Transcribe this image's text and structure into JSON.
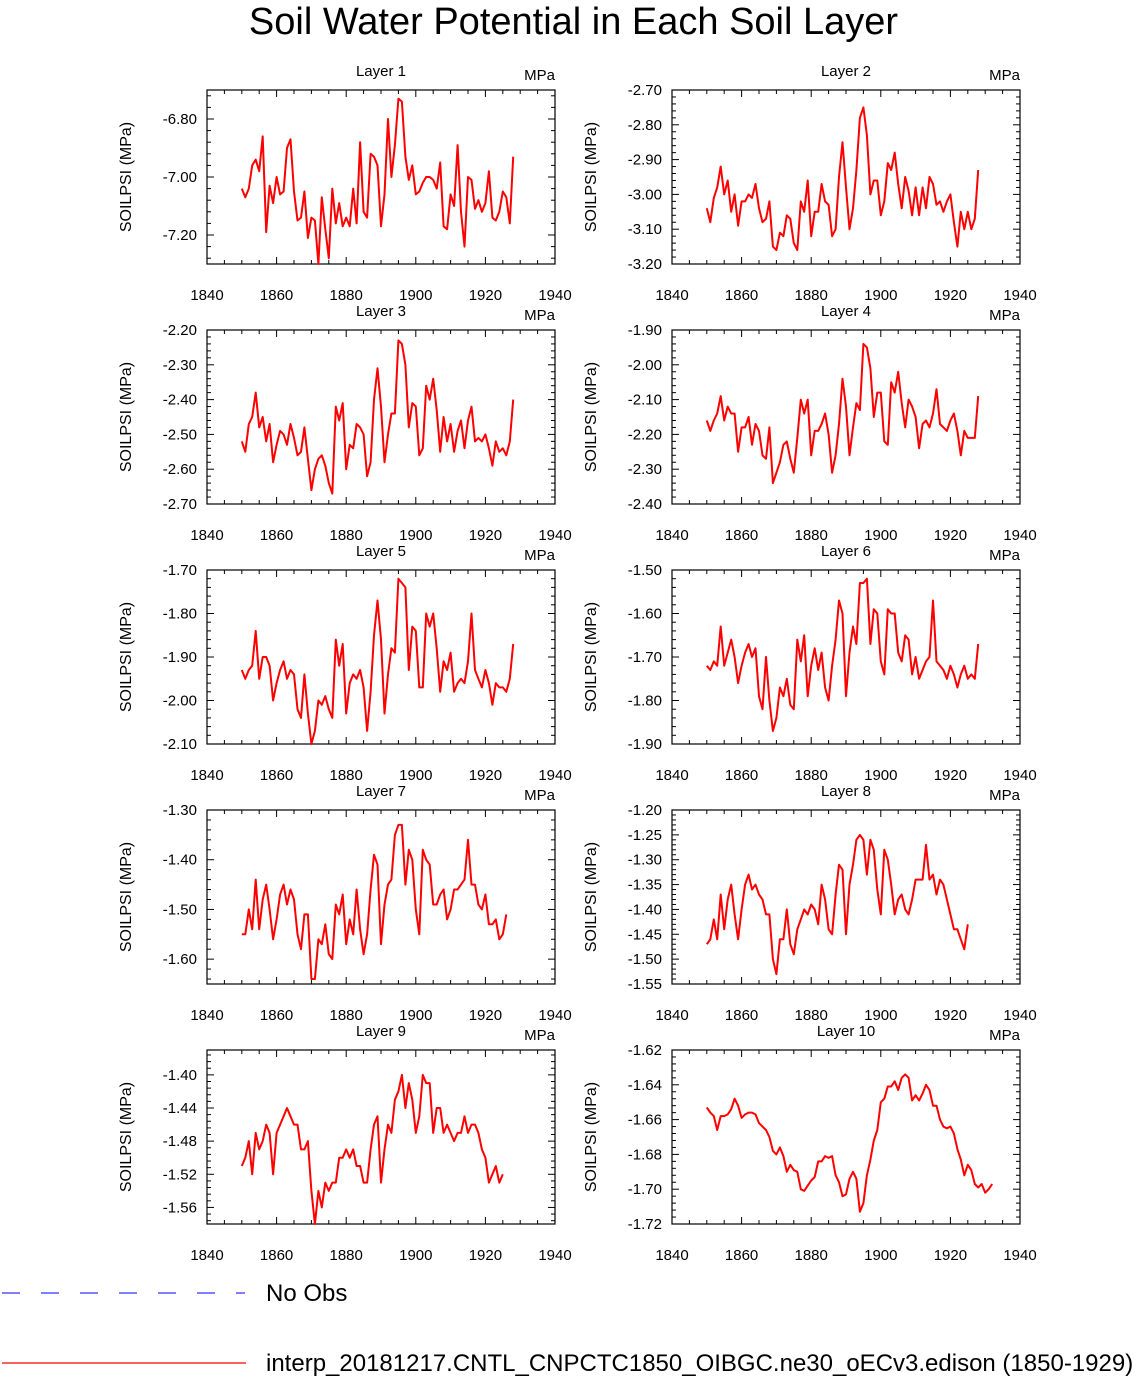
{
  "title": "Soil Water Potential in Each Soil Layer",
  "legend": [
    {
      "label": "No Obs",
      "color": "#3333ff",
      "style": "dashed"
    },
    {
      "label": "interp_20181217.CNTL_CNPCTC1850_OIBGC.ne30_oECv3.edison (1850-1929)",
      "color": "#ff0000",
      "style": "solid"
    }
  ],
  "chart_data": [
    {
      "type": "line",
      "title": "Layer 1",
      "units": "MPa",
      "ylabel": "SOILPSI  (MPa)",
      "xlim": [
        1840,
        1940
      ],
      "xticks": [
        1840,
        1860,
        1880,
        1900,
        1920,
        1940
      ],
      "ylim": [
        -7.3,
        -6.7
      ],
      "yticks": [
        -7.2,
        -7.0,
        -6.8
      ],
      "ytick_labels": [
        "-7.20",
        "-7.00",
        "-6.80"
      ],
      "x_start": 1850,
      "values": [
        -7.04,
        -7.07,
        -7.04,
        -6.96,
        -6.94,
        -6.98,
        -6.86,
        -7.19,
        -7.03,
        -7.09,
        -7.0,
        -7.06,
        -7.05,
        -6.9,
        -6.87,
        -7.05,
        -7.15,
        -7.14,
        -7.05,
        -7.21,
        -7.14,
        -7.15,
        -7.3,
        -7.07,
        -7.18,
        -7.28,
        -7.04,
        -7.16,
        -7.09,
        -7.17,
        -7.14,
        -7.17,
        -7.04,
        -7.16,
        -6.88,
        -7.12,
        -7.14,
        -6.92,
        -6.93,
        -6.96,
        -7.17,
        -7.06,
        -6.8,
        -7.0,
        -6.89,
        -6.73,
        -6.74,
        -6.93,
        -7.01,
        -6.96,
        -7.06,
        -7.05,
        -7.02,
        -7.0,
        -7.0,
        -7.01,
        -7.04,
        -6.95,
        -7.17,
        -7.18,
        -7.06,
        -7.1,
        -6.89,
        -7.12,
        -7.24,
        -7.0,
        -7.01,
        -7.11,
        -7.08,
        -7.12,
        -7.09,
        -6.98,
        -7.14,
        -7.15,
        -7.12,
        -7.05,
        -7.07,
        -7.16,
        -6.93
      ]
    },
    {
      "type": "line",
      "title": "Layer 2",
      "units": "MPa",
      "ylabel": "SOILPSI  (MPa)",
      "xlim": [
        1840,
        1940
      ],
      "xticks": [
        1840,
        1860,
        1880,
        1900,
        1920,
        1940
      ],
      "ylim": [
        -3.2,
        -2.7
      ],
      "yticks": [
        -3.2,
        -3.1,
        -3.0,
        -2.9,
        -2.8,
        -2.7
      ],
      "ytick_labels": [
        "-3.20",
        "-3.10",
        "-3.00",
        "-2.90",
        "-2.80",
        "-2.70"
      ],
      "x_start": 1850,
      "values": [
        -3.04,
        -3.08,
        -3.01,
        -2.98,
        -2.92,
        -3.0,
        -2.96,
        -3.05,
        -3.0,
        -3.09,
        -3.02,
        -3.02,
        -3.0,
        -3.01,
        -2.97,
        -3.04,
        -3.08,
        -3.07,
        -3.02,
        -3.15,
        -3.16,
        -3.11,
        -3.12,
        -3.06,
        -3.07,
        -3.14,
        -3.16,
        -3.02,
        -3.05,
        -2.96,
        -3.12,
        -3.05,
        -3.05,
        -2.97,
        -3.02,
        -3.03,
        -3.12,
        -3.1,
        -2.95,
        -2.85,
        -2.98,
        -3.1,
        -3.04,
        -2.93,
        -2.78,
        -2.75,
        -2.83,
        -3.0,
        -2.96,
        -2.96,
        -3.06,
        -3.02,
        -2.91,
        -2.93,
        -2.88,
        -2.97,
        -3.04,
        -2.95,
        -2.99,
        -3.06,
        -2.98,
        -3.06,
        -2.98,
        -3.04,
        -2.95,
        -2.97,
        -3.03,
        -3.02,
        -3.05,
        -3.02,
        -3.0,
        -3.08,
        -3.15,
        -3.05,
        -3.1,
        -3.05,
        -3.1,
        -3.07,
        -2.93
      ]
    },
    {
      "type": "line",
      "title": "Layer 3",
      "units": "MPa",
      "ylabel": "SOILPSI  (MPa)",
      "xlim": [
        1840,
        1940
      ],
      "xticks": [
        1840,
        1860,
        1880,
        1900,
        1920,
        1940
      ],
      "ylim": [
        -2.7,
        -2.2
      ],
      "yticks": [
        -2.7,
        -2.6,
        -2.5,
        -2.4,
        -2.3,
        -2.2
      ],
      "ytick_labels": [
        "-2.70",
        "-2.60",
        "-2.50",
        "-2.40",
        "-2.30",
        "-2.20"
      ],
      "x_start": 1850,
      "values": [
        -2.52,
        -2.55,
        -2.47,
        -2.45,
        -2.38,
        -2.48,
        -2.45,
        -2.52,
        -2.47,
        -2.58,
        -2.53,
        -2.49,
        -2.5,
        -2.53,
        -2.47,
        -2.51,
        -2.56,
        -2.55,
        -2.48,
        -2.57,
        -2.66,
        -2.6,
        -2.57,
        -2.56,
        -2.59,
        -2.64,
        -2.67,
        -2.42,
        -2.46,
        -2.41,
        -2.6,
        -2.53,
        -2.54,
        -2.47,
        -2.48,
        -2.5,
        -2.62,
        -2.58,
        -2.4,
        -2.31,
        -2.42,
        -2.58,
        -2.5,
        -2.44,
        -2.44,
        -2.23,
        -2.24,
        -2.3,
        -2.48,
        -2.41,
        -2.42,
        -2.56,
        -2.54,
        -2.36,
        -2.4,
        -2.34,
        -2.43,
        -2.55,
        -2.45,
        -2.52,
        -2.47,
        -2.55,
        -2.49,
        -2.46,
        -2.54,
        -2.46,
        -2.42,
        -2.52,
        -2.51,
        -2.52,
        -2.5,
        -2.54,
        -2.59,
        -2.52,
        -2.55,
        -2.54,
        -2.56,
        -2.52,
        -2.4
      ]
    },
    {
      "type": "line",
      "title": "Layer 4",
      "units": "MPa",
      "ylabel": "SOILPSI  (MPa)",
      "xlim": [
        1840,
        1940
      ],
      "xticks": [
        1840,
        1860,
        1880,
        1900,
        1920,
        1940
      ],
      "ylim": [
        -2.4,
        -1.9
      ],
      "yticks": [
        -2.4,
        -2.3,
        -2.2,
        -2.1,
        -2.0,
        -1.9
      ],
      "ytick_labels": [
        "-2.40",
        "-2.30",
        "-2.20",
        "-2.10",
        "-2.00",
        "-1.90"
      ],
      "x_start": 1850,
      "values": [
        -2.16,
        -2.19,
        -2.16,
        -2.14,
        -2.09,
        -2.16,
        -2.12,
        -2.14,
        -2.14,
        -2.25,
        -2.18,
        -2.18,
        -2.15,
        -2.23,
        -2.17,
        -2.19,
        -2.26,
        -2.27,
        -2.18,
        -2.34,
        -2.31,
        -2.28,
        -2.23,
        -2.22,
        -2.27,
        -2.31,
        -2.21,
        -2.1,
        -2.14,
        -2.1,
        -2.26,
        -2.19,
        -2.19,
        -2.17,
        -2.14,
        -2.2,
        -2.31,
        -2.26,
        -2.17,
        -2.04,
        -2.12,
        -2.26,
        -2.18,
        -2.11,
        -2.13,
        -1.94,
        -1.95,
        -2.01,
        -2.15,
        -2.08,
        -2.08,
        -2.22,
        -2.23,
        -2.05,
        -2.08,
        -2.02,
        -2.11,
        -2.18,
        -2.1,
        -2.12,
        -2.15,
        -2.24,
        -2.17,
        -2.16,
        -2.18,
        -2.14,
        -2.07,
        -2.17,
        -2.18,
        -2.19,
        -2.16,
        -2.14,
        -2.19,
        -2.26,
        -2.19,
        -2.21,
        -2.21,
        -2.21,
        -2.09
      ]
    },
    {
      "type": "line",
      "title": "Layer 5",
      "units": "MPa",
      "ylabel": "SOILPSI  (MPa)",
      "xlim": [
        1840,
        1940
      ],
      "xticks": [
        1840,
        1860,
        1880,
        1900,
        1920,
        1940
      ],
      "ylim": [
        -2.1,
        -1.7
      ],
      "yticks": [
        -2.1,
        -2.0,
        -1.9,
        -1.8,
        -1.7
      ],
      "ytick_labels": [
        "-2.10",
        "-2.00",
        "-1.90",
        "-1.80",
        "-1.70"
      ],
      "x_start": 1850,
      "values": [
        -1.93,
        -1.95,
        -1.93,
        -1.92,
        -1.84,
        -1.95,
        -1.9,
        -1.9,
        -1.92,
        -2.0,
        -1.96,
        -1.93,
        -1.91,
        -1.95,
        -1.93,
        -1.94,
        -2.02,
        -2.04,
        -1.94,
        -2.03,
        -2.1,
        -2.07,
        -2.0,
        -2.01,
        -1.99,
        -2.02,
        -2.04,
        -1.86,
        -1.92,
        -1.87,
        -2.03,
        -1.96,
        -1.94,
        -1.95,
        -1.93,
        -1.97,
        -2.07,
        -1.98,
        -1.85,
        -1.77,
        -1.86,
        -2.03,
        -1.94,
        -1.88,
        -1.89,
        -1.72,
        -1.73,
        -1.74,
        -1.93,
        -1.83,
        -1.84,
        -1.97,
        -1.97,
        -1.8,
        -1.83,
        -1.8,
        -1.88,
        -1.98,
        -1.91,
        -1.93,
        -1.89,
        -1.98,
        -1.96,
        -1.95,
        -1.96,
        -1.91,
        -1.8,
        -1.93,
        -1.95,
        -1.97,
        -1.93,
        -1.96,
        -2.01,
        -1.96,
        -1.97,
        -1.97,
        -1.98,
        -1.95,
        -1.87
      ]
    },
    {
      "type": "line",
      "title": "Layer 6",
      "units": "MPa",
      "ylabel": "SOILPSI  (MPa)",
      "xlim": [
        1840,
        1940
      ],
      "xticks": [
        1840,
        1860,
        1880,
        1900,
        1920,
        1940
      ],
      "ylim": [
        -1.9,
        -1.5
      ],
      "yticks": [
        -1.9,
        -1.8,
        -1.7,
        -1.6,
        -1.5
      ],
      "ytick_labels": [
        "-1.90",
        "-1.80",
        "-1.70",
        "-1.60",
        "-1.50"
      ],
      "x_start": 1850,
      "values": [
        -1.72,
        -1.73,
        -1.71,
        -1.72,
        -1.63,
        -1.72,
        -1.69,
        -1.66,
        -1.7,
        -1.76,
        -1.72,
        -1.69,
        -1.67,
        -1.7,
        -1.68,
        -1.79,
        -1.82,
        -1.7,
        -1.8,
        -1.87,
        -1.84,
        -1.77,
        -1.79,
        -1.75,
        -1.81,
        -1.82,
        -1.66,
        -1.71,
        -1.65,
        -1.79,
        -1.72,
        -1.68,
        -1.73,
        -1.69,
        -1.77,
        -1.8,
        -1.72,
        -1.66,
        -1.57,
        -1.6,
        -1.79,
        -1.69,
        -1.63,
        -1.67,
        -1.53,
        -1.53,
        -1.52,
        -1.67,
        -1.59,
        -1.6,
        -1.71,
        -1.74,
        -1.59,
        -1.6,
        -1.6,
        -1.69,
        -1.71,
        -1.65,
        -1.66,
        -1.74,
        -1.7,
        -1.75,
        -1.73,
        -1.71,
        -1.7,
        -1.57,
        -1.71,
        -1.72,
        -1.73,
        -1.75,
        -1.72,
        -1.74,
        -1.77,
        -1.74,
        -1.72,
        -1.75,
        -1.74,
        -1.75,
        -1.67
      ]
    },
    {
      "type": "line",
      "title": "Layer 7",
      "units": "MPa",
      "ylabel": "SOILPSI  (MPa)",
      "xlim": [
        1840,
        1940
      ],
      "xticks": [
        1840,
        1860,
        1880,
        1900,
        1920,
        1940
      ],
      "ylim": [
        -1.65,
        -1.3
      ],
      "yticks": [
        -1.6,
        -1.5,
        -1.4,
        -1.3
      ],
      "ytick_labels": [
        "-1.60",
        "-1.50",
        "-1.40",
        "-1.30"
      ],
      "x_start": 1850,
      "values": [
        -1.55,
        -1.55,
        -1.5,
        -1.54,
        -1.44,
        -1.54,
        -1.48,
        -1.45,
        -1.5,
        -1.56,
        -1.52,
        -1.47,
        -1.45,
        -1.49,
        -1.46,
        -1.48,
        -1.55,
        -1.58,
        -1.51,
        -1.51,
        -1.64,
        -1.64,
        -1.56,
        -1.57,
        -1.53,
        -1.59,
        -1.6,
        -1.49,
        -1.51,
        -1.47,
        -1.57,
        -1.52,
        -1.55,
        -1.46,
        -1.54,
        -1.59,
        -1.55,
        -1.46,
        -1.39,
        -1.41,
        -1.57,
        -1.49,
        -1.45,
        -1.44,
        -1.35,
        -1.33,
        -1.33,
        -1.45,
        -1.38,
        -1.4,
        -1.5,
        -1.55,
        -1.38,
        -1.4,
        -1.41,
        -1.49,
        -1.49,
        -1.47,
        -1.46,
        -1.52,
        -1.5,
        -1.46,
        -1.46,
        -1.45,
        -1.44,
        -1.36,
        -1.45,
        -1.45,
        -1.49,
        -1.5,
        -1.47,
        -1.53,
        -1.53,
        -1.52,
        -1.56,
        -1.55,
        -1.51
      ]
    },
    {
      "type": "line",
      "title": "Layer 8",
      "units": "MPa",
      "ylabel": "SOILPSI  (MPa)",
      "xlim": [
        1840,
        1940
      ],
      "xticks": [
        1840,
        1860,
        1880,
        1900,
        1920,
        1940
      ],
      "ylim": [
        -1.55,
        -1.2
      ],
      "yticks": [
        -1.55,
        -1.5,
        -1.45,
        -1.4,
        -1.35,
        -1.3,
        -1.25,
        -1.2
      ],
      "ytick_labels": [
        "-1.55",
        "-1.50",
        "-1.45",
        "-1.40",
        "-1.35",
        "-1.30",
        "-1.25",
        "-1.20"
      ],
      "x_start": 1850,
      "values": [
        -1.47,
        -1.46,
        -1.42,
        -1.46,
        -1.37,
        -1.44,
        -1.38,
        -1.35,
        -1.41,
        -1.46,
        -1.4,
        -1.35,
        -1.33,
        -1.36,
        -1.35,
        -1.37,
        -1.38,
        -1.41,
        -1.41,
        -1.5,
        -1.53,
        -1.46,
        -1.46,
        -1.4,
        -1.47,
        -1.49,
        -1.44,
        -1.42,
        -1.4,
        -1.41,
        -1.39,
        -1.4,
        -1.43,
        -1.35,
        -1.38,
        -1.44,
        -1.45,
        -1.37,
        -1.31,
        -1.32,
        -1.45,
        -1.35,
        -1.31,
        -1.26,
        -1.25,
        -1.26,
        -1.33,
        -1.26,
        -1.28,
        -1.36,
        -1.41,
        -1.28,
        -1.3,
        -1.35,
        -1.41,
        -1.38,
        -1.37,
        -1.4,
        -1.41,
        -1.38,
        -1.34,
        -1.34,
        -1.34,
        -1.27,
        -1.34,
        -1.33,
        -1.37,
        -1.34,
        -1.35,
        -1.38,
        -1.41,
        -1.44,
        -1.44,
        -1.46,
        -1.48,
        -1.43
      ]
    },
    {
      "type": "line",
      "title": "Layer 9",
      "units": "MPa",
      "ylabel": "SOILPSI  (MPa)",
      "xlim": [
        1840,
        1940
      ],
      "xticks": [
        1840,
        1860,
        1880,
        1900,
        1920,
        1940
      ],
      "ylim": [
        -1.58,
        -1.37
      ],
      "yticks": [
        -1.56,
        -1.52,
        -1.48,
        -1.44,
        -1.4
      ],
      "ytick_labels": [
        "-1.56",
        "-1.52",
        "-1.48",
        "-1.44",
        "-1.40"
      ],
      "x_start": 1850,
      "values": [
        -1.51,
        -1.5,
        -1.48,
        -1.52,
        -1.47,
        -1.49,
        -1.48,
        -1.46,
        -1.47,
        -1.52,
        -1.47,
        -1.46,
        -1.45,
        -1.44,
        -1.45,
        -1.46,
        -1.46,
        -1.49,
        -1.49,
        -1.48,
        -1.54,
        -1.58,
        -1.54,
        -1.56,
        -1.53,
        -1.54,
        -1.53,
        -1.53,
        -1.5,
        -1.5,
        -1.49,
        -1.5,
        -1.49,
        -1.51,
        -1.51,
        -1.53,
        -1.53,
        -1.49,
        -1.46,
        -1.45,
        -1.53,
        -1.49,
        -1.46,
        -1.47,
        -1.43,
        -1.42,
        -1.4,
        -1.44,
        -1.41,
        -1.43,
        -1.47,
        -1.45,
        -1.4,
        -1.41,
        -1.41,
        -1.47,
        -1.44,
        -1.44,
        -1.47,
        -1.46,
        -1.47,
        -1.48,
        -1.47,
        -1.47,
        -1.45,
        -1.47,
        -1.46,
        -1.46,
        -1.47,
        -1.49,
        -1.5,
        -1.53,
        -1.52,
        -1.51,
        -1.53,
        -1.52
      ]
    },
    {
      "type": "line",
      "title": "Layer 10",
      "units": "MPa",
      "ylabel": "SOILPSI  (MPa)",
      "xlim": [
        1840,
        1940
      ],
      "xticks": [
        1840,
        1860,
        1880,
        1900,
        1920,
        1940
      ],
      "ylim": [
        -1.72,
        -1.62
      ],
      "yticks": [
        -1.72,
        -1.7,
        -1.68,
        -1.66,
        -1.64,
        -1.62
      ],
      "ytick_labels": [
        "-1.72",
        "-1.70",
        "-1.68",
        "-1.66",
        "-1.64",
        "-1.62"
      ],
      "x_start": 1850,
      "values": [
        -1.653,
        -1.656,
        -1.658,
        -1.666,
        -1.658,
        -1.658,
        -1.657,
        -1.654,
        -1.648,
        -1.652,
        -1.659,
        -1.657,
        -1.656,
        -1.656,
        -1.657,
        -1.662,
        -1.664,
        -1.666,
        -1.67,
        -1.678,
        -1.68,
        -1.676,
        -1.681,
        -1.69,
        -1.686,
        -1.689,
        -1.69,
        -1.7,
        -1.701,
        -1.698,
        -1.695,
        -1.693,
        -1.684,
        -1.684,
        -1.681,
        -1.682,
        -1.681,
        -1.692,
        -1.696,
        -1.704,
        -1.703,
        -1.694,
        -1.69,
        -1.694,
        -1.713,
        -1.708,
        -1.692,
        -1.683,
        -1.672,
        -1.666,
        -1.65,
        -1.648,
        -1.641,
        -1.641,
        -1.638,
        -1.643,
        -1.636,
        -1.634,
        -1.636,
        -1.649,
        -1.646,
        -1.649,
        -1.645,
        -1.64,
        -1.643,
        -1.652,
        -1.652,
        -1.66,
        -1.664,
        -1.665,
        -1.664,
        -1.668,
        -1.677,
        -1.683,
        -1.692,
        -1.686,
        -1.689,
        -1.697,
        -1.699,
        -1.697,
        -1.702,
        -1.7,
        -1.697
      ]
    }
  ]
}
